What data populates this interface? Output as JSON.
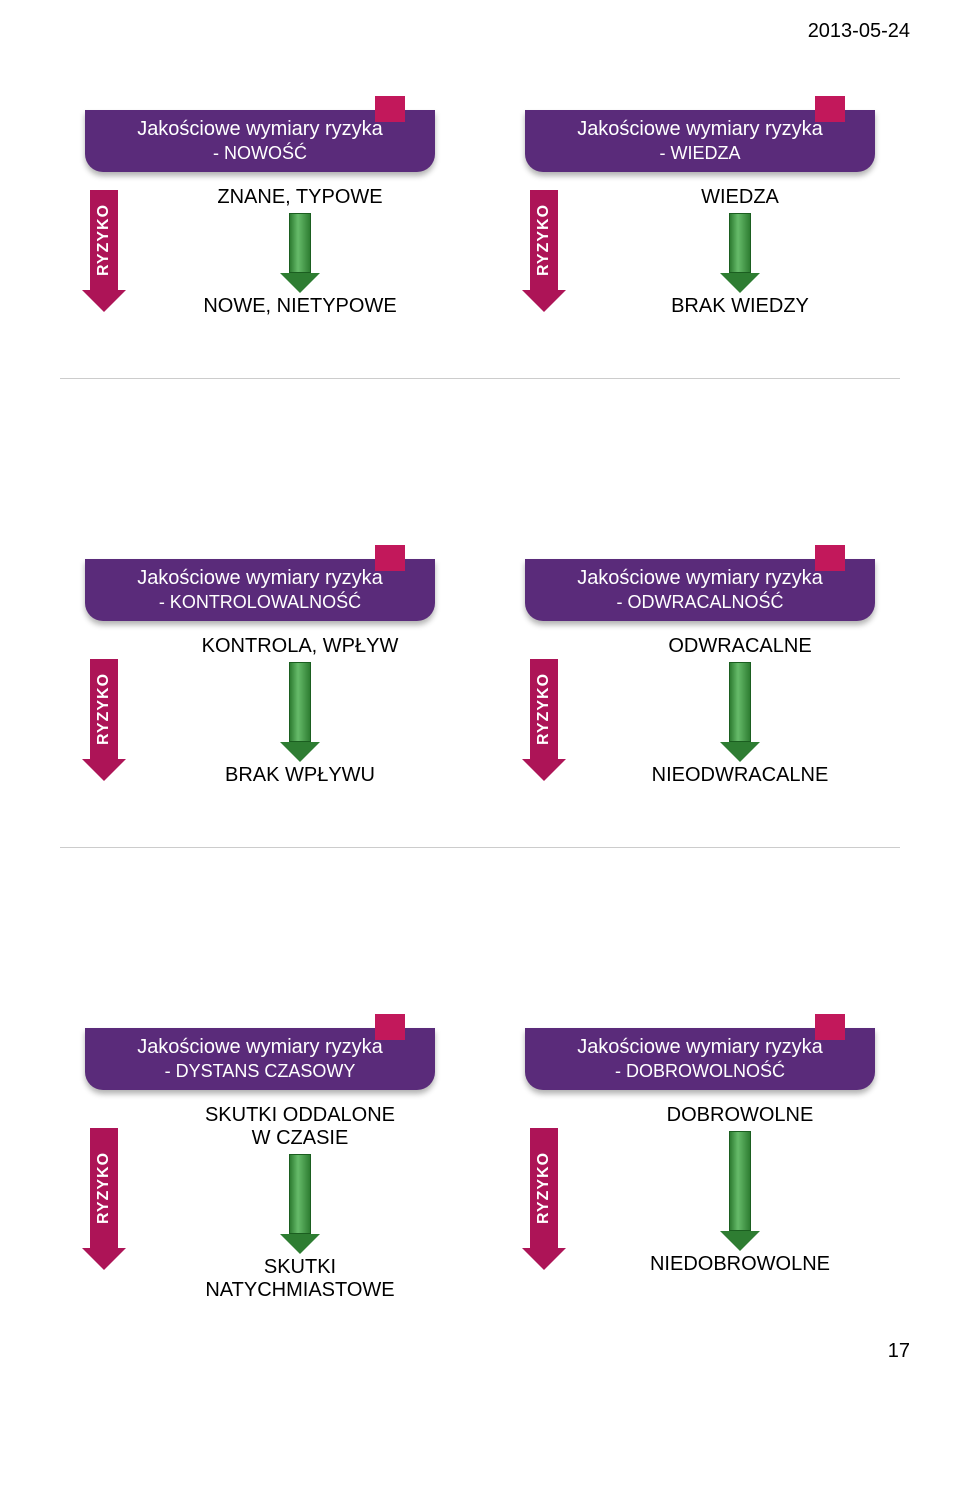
{
  "meta": {
    "date": "2013-05-24",
    "pageNumber": "17"
  },
  "banner_title": "Jakościowe wymiary ryzyka",
  "ryzyko_label": "RYZYKO",
  "panels": [
    {
      "sub": "- NOWOŚĆ",
      "top": "ZNANE, TYPOWE",
      "bot": "NOWE, NIETYPOWE",
      "gshaft": 60,
      "rtop": 80,
      "rh": 100
    },
    {
      "sub": "- WIEDZA",
      "top": "WIEDZA",
      "bot": "BRAK WIEDZY",
      "gshaft": 60,
      "rtop": 80,
      "rh": 100
    },
    {
      "sub": "- KONTROLOWALNOŚĆ",
      "top": "KONTROLA, WPŁYW",
      "bot": "BRAK WPŁYWU",
      "gshaft": 80,
      "rtop": 100,
      "rh": 100
    },
    {
      "sub": "- ODWRACALNOŚĆ",
      "top": "ODWRACALNE",
      "bot": "NIEODWRACALNE",
      "gshaft": 80,
      "rtop": 100,
      "rh": 100
    },
    {
      "sub": "- DYSTANS CZASOWY",
      "top": "SKUTKI ODDALONE W CZASIE",
      "bot": "SKUTKI NATYCHMIASTOWE",
      "gshaft": 80,
      "rtop": 100,
      "rh": 120,
      "twoLineBot": true
    },
    {
      "sub": "- DOBROWOLNOŚĆ",
      "top": "DOBROWOLNE",
      "bot": "NIEDOBROWOLNE",
      "gshaft": 100,
      "rtop": 100,
      "rh": 120
    }
  ],
  "colors": {
    "banner": "#5a2b7a",
    "tab": "#c2185b",
    "ryzyko": "#ad1457",
    "green": "#2e7d32",
    "bg": "#ffffff",
    "text": "#000000"
  }
}
